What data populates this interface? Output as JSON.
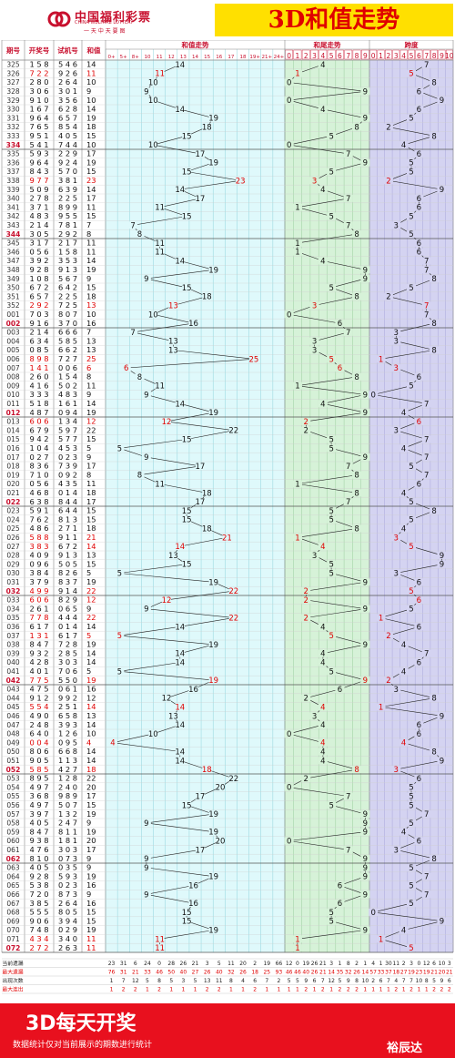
{
  "header": {
    "logo_cn": "中国福利彩票",
    "logo_en": "CHINA WELFARE LOTTERY",
    "logo_slogan": "一 天 中 天 要 图",
    "title": "3D和值走势"
  },
  "columns": {
    "period": "期号",
    "draw": "开奖号",
    "test": "试机号",
    "sum": "和值",
    "sum_trend": "和值走势",
    "tail_trend": "和尾走势",
    "span": "跨度"
  },
  "sum_ticks": [
    "0+",
    "5+",
    "8+",
    "10",
    "11",
    "12",
    "13",
    "14",
    "15",
    "16",
    "17",
    "18",
    "19+",
    "21+",
    "24+"
  ],
  "digit_ticks": [
    "0",
    "1",
    "2",
    "3",
    "4",
    "5",
    "6",
    "7",
    "8",
    "9"
  ],
  "stats": {
    "labels": [
      "当前遗漏",
      "最大遗漏",
      "出现次数",
      "最大连出"
    ],
    "sum": [
      [
        "23",
        "31",
        "6",
        "24",
        "0",
        "28",
        "26",
        "21",
        "3",
        "5",
        "11",
        "20",
        "2",
        "19",
        "66"
      ],
      [
        "76",
        "31",
        "21",
        "33",
        "46",
        "50",
        "40",
        "27",
        "26",
        "40",
        "32",
        "26",
        "18",
        "25",
        "93"
      ],
      [
        "1",
        "7",
        "12",
        "5",
        "8",
        "5",
        "3",
        "5",
        "13",
        "11",
        "8",
        "4",
        "6",
        "7",
        "2"
      ],
      [
        "1",
        "2",
        "2",
        "1",
        "2",
        "1",
        "1",
        "1",
        "2",
        "2",
        "1",
        "1",
        "2",
        "1",
        "1"
      ]
    ],
    "tail": [
      [
        "12",
        "0",
        "19",
        "26",
        "21",
        "3",
        "1",
        "8",
        "2",
        "1"
      ],
      [
        "46",
        "46",
        "40",
        "26",
        "21",
        "14",
        "35",
        "32",
        "26",
        "14"
      ],
      [
        "5",
        "5",
        "9",
        "6",
        "7",
        "12",
        "5",
        "9",
        "8",
        "10"
      ],
      [
        "1",
        "1",
        "2",
        "1",
        "2",
        "1",
        "2",
        "2",
        "2",
        "1"
      ]
    ],
    "span": [
      [
        "4",
        "1",
        "30",
        "11",
        "2",
        "3",
        "0",
        "12",
        "6",
        "10",
        "3"
      ],
      [
        "57",
        "33",
        "37",
        "18",
        "27",
        "19",
        "23",
        "19",
        "21",
        "20",
        "21"
      ],
      [
        "2",
        "6",
        "7",
        "4",
        "7",
        "7",
        "10",
        "8",
        "5",
        "9",
        "6"
      ],
      [
        "1",
        "1",
        "1",
        "2",
        "1",
        "2",
        "1",
        "1",
        "2",
        "2",
        "2"
      ]
    ]
  },
  "footer": {
    "title": "3D每天开奖",
    "subtitle": "数据统计仅对当前展示的期数进行统计",
    "brand": "裕辰达"
  },
  "chart_data": {
    "type": "table",
    "title": "3D和值走势",
    "columns": [
      "期号",
      "开奖号",
      "试机号",
      "和值",
      "和尾",
      "跨度"
    ],
    "rows": [
      [
        "325",
        "158",
        "546",
        "14",
        "4",
        "7"
      ],
      [
        "326",
        "722",
        "926",
        "11",
        "1",
        "5"
      ],
      [
        "327",
        "280",
        "264",
        "10",
        "0",
        "8"
      ],
      [
        "328",
        "306",
        "301",
        "9",
        "9",
        "6"
      ],
      [
        "329",
        "910",
        "356",
        "10",
        "0",
        "9"
      ],
      [
        "330",
        "167",
        "628",
        "14",
        "4",
        "6"
      ],
      [
        "331",
        "964",
        "657",
        "19",
        "9",
        "5"
      ],
      [
        "332",
        "765",
        "854",
        "18",
        "8",
        "2"
      ],
      [
        "333",
        "951",
        "405",
        "15",
        "5",
        "8"
      ],
      [
        "334",
        "541",
        "744",
        "10",
        "0",
        "4"
      ],
      [
        "335",
        "593",
        "229",
        "17",
        "7",
        "6"
      ],
      [
        "336",
        "964",
        "924",
        "19",
        "9",
        "5"
      ],
      [
        "337",
        "843",
        "570",
        "15",
        "5",
        "5"
      ],
      [
        "338",
        "977",
        "381",
        "23",
        "3",
        "2"
      ],
      [
        "339",
        "509",
        "639",
        "14",
        "4",
        "9"
      ],
      [
        "340",
        "278",
        "225",
        "17",
        "7",
        "6"
      ],
      [
        "341",
        "371",
        "899",
        "11",
        "1",
        "6"
      ],
      [
        "342",
        "483",
        "955",
        "15",
        "5",
        "5"
      ],
      [
        "343",
        "214",
        "781",
        "7",
        "7",
        "3"
      ],
      [
        "344",
        "305",
        "292",
        "8",
        "8",
        "5"
      ],
      [
        "345",
        "317",
        "217",
        "11",
        "1",
        "6"
      ],
      [
        "346",
        "056",
        "158",
        "11",
        "1",
        "6"
      ],
      [
        "347",
        "392",
        "353",
        "14",
        "4",
        "7"
      ],
      [
        "348",
        "928",
        "913",
        "19",
        "9",
        "7"
      ],
      [
        "349",
        "108",
        "567",
        "9",
        "9",
        "8"
      ],
      [
        "350",
        "672",
        "642",
        "15",
        "5",
        "5"
      ],
      [
        "351",
        "657",
        "225",
        "18",
        "8",
        "2"
      ],
      [
        "352",
        "292",
        "725",
        "13",
        "3",
        "7"
      ],
      [
        "001",
        "703",
        "807",
        "10",
        "0",
        "7"
      ],
      [
        "002",
        "916",
        "370",
        "16",
        "6",
        "8"
      ],
      [
        "003",
        "214",
        "666",
        "7",
        "7",
        "3"
      ],
      [
        "004",
        "634",
        "585",
        "13",
        "3",
        "3"
      ],
      [
        "005",
        "085",
        "662",
        "13",
        "3",
        "8"
      ],
      [
        "006",
        "898",
        "727",
        "25",
        "5",
        "1"
      ],
      [
        "007",
        "141",
        "006",
        "6",
        "6",
        "3"
      ],
      [
        "008",
        "260",
        "154",
        "8",
        "8",
        "6"
      ],
      [
        "009",
        "416",
        "502",
        "11",
        "1",
        "5"
      ],
      [
        "010",
        "333",
        "483",
        "9",
        "9",
        "0"
      ],
      [
        "011",
        "518",
        "161",
        "14",
        "4",
        "7"
      ],
      [
        "012",
        "487",
        "094",
        "19",
        "9",
        "4"
      ],
      [
        "013",
        "606",
        "134",
        "12",
        "2",
        "6"
      ],
      [
        "014",
        "679",
        "597",
        "22",
        "2",
        "3"
      ],
      [
        "015",
        "942",
        "577",
        "15",
        "5",
        "7"
      ],
      [
        "016",
        "104",
        "453",
        "5",
        "5",
        "4"
      ],
      [
        "017",
        "027",
        "023",
        "9",
        "9",
        "7"
      ],
      [
        "018",
        "836",
        "739",
        "17",
        "7",
        "5"
      ],
      [
        "019",
        "710",
        "092",
        "8",
        "8",
        "7"
      ],
      [
        "020",
        "056",
        "435",
        "11",
        "1",
        "6"
      ],
      [
        "021",
        "468",
        "014",
        "18",
        "8",
        "4"
      ],
      [
        "022",
        "638",
        "844",
        "17",
        "7",
        "5"
      ],
      [
        "023",
        "591",
        "644",
        "15",
        "5",
        "8"
      ],
      [
        "024",
        "762",
        "813",
        "15",
        "5",
        "5"
      ],
      [
        "025",
        "486",
        "271",
        "18",
        "8",
        "4"
      ],
      [
        "026",
        "588",
        "911",
        "21",
        "1",
        "3"
      ],
      [
        "027",
        "383",
        "672",
        "14",
        "4",
        "5"
      ],
      [
        "028",
        "409",
        "913",
        "13",
        "3",
        "9"
      ],
      [
        "029",
        "096",
        "505",
        "15",
        "5",
        "9"
      ],
      [
        "030",
        "384",
        "826",
        "5",
        "5",
        "3"
      ],
      [
        "031",
        "379",
        "837",
        "19",
        "9",
        "6"
      ],
      [
        "032",
        "499",
        "914",
        "22",
        "2",
        "5"
      ],
      [
        "033",
        "606",
        "829",
        "12",
        "2",
        "6"
      ],
      [
        "034",
        "261",
        "065",
        "9",
        "9",
        "5"
      ],
      [
        "035",
        "778",
        "444",
        "22",
        "2",
        "1"
      ],
      [
        "036",
        "617",
        "014",
        "14",
        "4",
        "6"
      ],
      [
        "037",
        "131",
        "617",
        "5",
        "5",
        "2"
      ],
      [
        "038",
        "847",
        "728",
        "19",
        "9",
        "4"
      ],
      [
        "039",
        "932",
        "285",
        "14",
        "4",
        "7"
      ],
      [
        "040",
        "428",
        "303",
        "14",
        "4",
        "6"
      ],
      [
        "041",
        "401",
        "706",
        "5",
        "5",
        "4"
      ],
      [
        "042",
        "775",
        "550",
        "19",
        "9",
        "2"
      ],
      [
        "043",
        "475",
        "061",
        "16",
        "6",
        "3"
      ],
      [
        "044",
        "912",
        "992",
        "12",
        "2",
        "8"
      ],
      [
        "045",
        "554",
        "251",
        "14",
        "4",
        "1"
      ],
      [
        "046",
        "490",
        "658",
        "13",
        "3",
        "9"
      ],
      [
        "047",
        "248",
        "393",
        "14",
        "4",
        "6"
      ],
      [
        "048",
        "640",
        "126",
        "10",
        "0",
        "6"
      ],
      [
        "049",
        "004",
        "095",
        "4",
        "4",
        "4"
      ],
      [
        "050",
        "806",
        "668",
        "14",
        "4",
        "8"
      ],
      [
        "051",
        "905",
        "113",
        "14",
        "4",
        "9"
      ],
      [
        "052",
        "585",
        "427",
        "18",
        "8",
        "3"
      ],
      [
        "053",
        "895",
        "128",
        "22",
        "2",
        "6"
      ],
      [
        "054",
        "497",
        "240",
        "20",
        "0",
        "5"
      ],
      [
        "055",
        "368",
        "989",
        "17",
        "7",
        "5"
      ],
      [
        "056",
        "497",
        "507",
        "15",
        "5",
        "5"
      ],
      [
        "057",
        "397",
        "132",
        "19",
        "9",
        "7"
      ],
      [
        "058",
        "405",
        "247",
        "9",
        "9",
        "5"
      ],
      [
        "059",
        "847",
        "811",
        "19",
        "9",
        "4"
      ],
      [
        "060",
        "938",
        "181",
        "20",
        "0",
        "6"
      ],
      [
        "061",
        "476",
        "303",
        "17",
        "7",
        "3"
      ],
      [
        "062",
        "810",
        "073",
        "9",
        "9",
        "8"
      ],
      [
        "063",
        "405",
        "035",
        "9",
        "9",
        "5"
      ],
      [
        "064",
        "928",
        "593",
        "19",
        "9",
        "7"
      ],
      [
        "065",
        "538",
        "023",
        "16",
        "6",
        "5"
      ],
      [
        "066",
        "720",
        "873",
        "9",
        "9",
        "7"
      ],
      [
        "067",
        "385",
        "264",
        "16",
        "6",
        "5"
      ],
      [
        "068",
        "555",
        "805",
        "15",
        "5",
        "0"
      ],
      [
        "069",
        "906",
        "394",
        "15",
        "5",
        "9"
      ],
      [
        "070",
        "748",
        "029",
        "19",
        "9",
        "4"
      ],
      [
        "071",
        "434",
        "340",
        "11",
        "1",
        "1"
      ],
      [
        "072",
        "272",
        "263",
        "11",
        "1",
        "5"
      ]
    ]
  }
}
